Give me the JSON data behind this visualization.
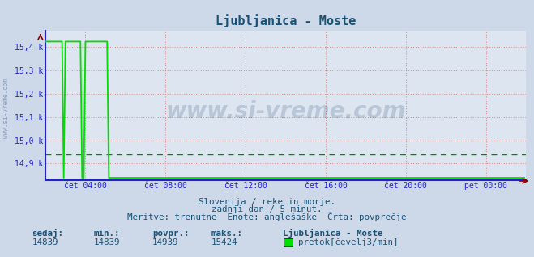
{
  "title": "Ljubljanica - Moste",
  "title_color": "#1a5276",
  "bg_color": "#cdd9e8",
  "plot_bg_color": "#dde6f0",
  "line_color": "#00dd00",
  "avg_line_color": "#008800",
  "x_axis_color": "#2222cc",
  "y_axis_color": "#2222cc",
  "tick_color": "#2222cc",
  "grid_h_color": "#e09090",
  "grid_v_color": "#e09090",
  "ytick_labels": [
    "14,9 k",
    "15,0 k",
    "15,1 k",
    "15,2 k",
    "15,3 k",
    "15,4 k"
  ],
  "ytick_values": [
    14900,
    15000,
    15100,
    15200,
    15300,
    15400
  ],
  "ymin": 14830,
  "ymax": 15470,
  "xmin": 0,
  "xmax": 288,
  "xtick_positions": [
    24,
    72,
    120,
    168,
    216,
    264
  ],
  "xtick_labels": [
    "čet 04:00",
    "čet 08:00",
    "čet 12:00",
    "čet 16:00",
    "čet 20:00",
    "pet 00:00"
  ],
  "avg_value": 14939,
  "min_value": 14839,
  "max_value": 15424,
  "subtitle1": "Slovenija / reke in morje.",
  "subtitle2": "zadnji dan / 5 minut.",
  "subtitle3": "Meritve: trenutne  Enote: anglešaške  Črta: povprečje",
  "footer_labels": [
    "sedaj:",
    "min.:",
    "povpr.:",
    "maks.:"
  ],
  "footer_values": [
    "14839",
    "14839",
    "14939",
    "15424"
  ],
  "legend_label": "Ljubljanica - Moste",
  "legend_series": "pretok[čevelj3/min]",
  "watermark": "www.si-vreme.com",
  "watermark_color": "#1a3a6a",
  "left_text": "www.si-vreme.com",
  "left_text_color": "#8899bb"
}
